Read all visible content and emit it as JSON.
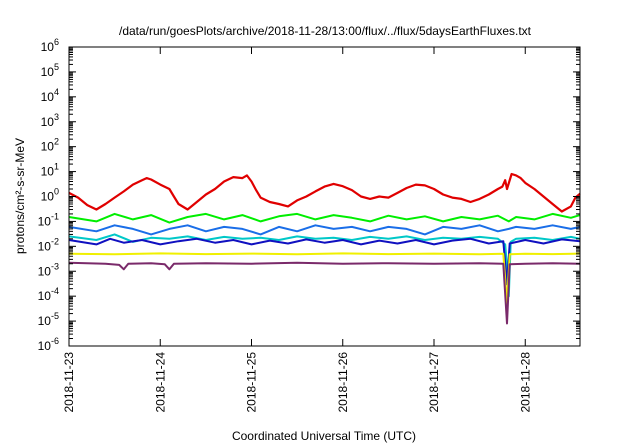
{
  "chart_data": {
    "type": "line",
    "title": "/data/run/goesPlots/archive/2018-11-28/13:00/flux/../flux/5daysEarthFluxes.txt",
    "xlabel": "Coordinated Universal Time (UTC)",
    "ylabel": "protons/cm²-s-sr-MeV",
    "yscale": "log",
    "ylim": [
      1e-06,
      1000000.0
    ],
    "xlim_days": [
      0,
      5.6
    ],
    "x_ticks": [
      {
        "day": 0,
        "label": "2018-11-23"
      },
      {
        "day": 1,
        "label": "2018-11-24"
      },
      {
        "day": 2,
        "label": "2018-11-25"
      },
      {
        "day": 3,
        "label": "2018-11-26"
      },
      {
        "day": 4,
        "label": "2018-11-27"
      },
      {
        "day": 5,
        "label": "2018-11-28"
      }
    ],
    "y_ticks": [
      {
        "value": 1e-06,
        "base": "10",
        "exp": "-6"
      },
      {
        "value": 1e-05,
        "base": "10",
        "exp": "-5"
      },
      {
        "value": 0.0001,
        "base": "10",
        "exp": "-4"
      },
      {
        "value": 0.001,
        "base": "10",
        "exp": "-3"
      },
      {
        "value": 0.01,
        "base": "10",
        "exp": "-2"
      },
      {
        "value": 0.1,
        "base": "10",
        "exp": "-1"
      },
      {
        "value": 1,
        "base": "10",
        "exp": "0"
      },
      {
        "value": 10.0,
        "base": "10",
        "exp": "1"
      },
      {
        "value": 100.0,
        "base": "10",
        "exp": "2"
      },
      {
        "value": 1000.0,
        "base": "10",
        "exp": "3"
      },
      {
        "value": 10000.0,
        "base": "10",
        "exp": "4"
      },
      {
        "value": 100000.0,
        "base": "10",
        "exp": "5"
      },
      {
        "value": 1000000.0,
        "base": "10",
        "exp": "6"
      }
    ],
    "grid": false,
    "legend": "none",
    "series": [
      {
        "color": "#e00000",
        "width": 2.2,
        "points": [
          [
            0.0,
            1.4
          ],
          [
            0.1,
            0.9
          ],
          [
            0.2,
            0.45
          ],
          [
            0.3,
            0.3
          ],
          [
            0.4,
            0.5
          ],
          [
            0.5,
            0.9
          ],
          [
            0.6,
            1.6
          ],
          [
            0.7,
            3.0
          ],
          [
            0.8,
            4.5
          ],
          [
            0.85,
            5.5
          ],
          [
            0.9,
            4.8
          ],
          [
            1.0,
            3.0
          ],
          [
            1.1,
            2.0
          ],
          [
            1.15,
            1.0
          ],
          [
            1.2,
            0.5
          ],
          [
            1.3,
            0.3
          ],
          [
            1.4,
            0.6
          ],
          [
            1.5,
            1.2
          ],
          [
            1.6,
            2.0
          ],
          [
            1.7,
            4.0
          ],
          [
            1.8,
            6.0
          ],
          [
            1.9,
            5.5
          ],
          [
            1.95,
            7.0
          ],
          [
            2.0,
            4.0
          ],
          [
            2.05,
            1.8
          ],
          [
            2.1,
            0.9
          ],
          [
            2.2,
            0.6
          ],
          [
            2.3,
            0.5
          ],
          [
            2.4,
            0.4
          ],
          [
            2.5,
            0.7
          ],
          [
            2.6,
            1.0
          ],
          [
            2.7,
            1.6
          ],
          [
            2.8,
            2.5
          ],
          [
            2.9,
            3.2
          ],
          [
            3.0,
            2.6
          ],
          [
            3.1,
            1.8
          ],
          [
            3.2,
            1.0
          ],
          [
            3.3,
            0.8
          ],
          [
            3.4,
            1.0
          ],
          [
            3.5,
            0.9
          ],
          [
            3.6,
            1.4
          ],
          [
            3.7,
            2.2
          ],
          [
            3.8,
            3.0
          ],
          [
            3.9,
            2.8
          ],
          [
            4.0,
            2.0
          ],
          [
            4.1,
            1.2
          ],
          [
            4.2,
            0.9
          ],
          [
            4.3,
            0.8
          ],
          [
            4.4,
            0.6
          ],
          [
            4.5,
            0.8
          ],
          [
            4.6,
            1.2
          ],
          [
            4.7,
            2.0
          ],
          [
            4.75,
            2.5
          ],
          [
            4.78,
            4.5
          ],
          [
            4.8,
            2.0
          ],
          [
            4.85,
            8.0
          ],
          [
            4.9,
            7.0
          ],
          [
            4.95,
            5.5
          ],
          [
            5.0,
            3.5
          ],
          [
            5.1,
            2.0
          ],
          [
            5.2,
            1.0
          ],
          [
            5.3,
            0.5
          ],
          [
            5.4,
            0.25
          ],
          [
            5.5,
            0.4
          ],
          [
            5.55,
            0.9
          ],
          [
            5.6,
            1.3
          ]
        ]
      },
      {
        "color": "#00ee00",
        "width": 2.0,
        "points": [
          [
            0.0,
            0.15
          ],
          [
            0.3,
            0.1
          ],
          [
            0.5,
            0.2
          ],
          [
            0.7,
            0.12
          ],
          [
            0.9,
            0.18
          ],
          [
            1.1,
            0.09
          ],
          [
            1.3,
            0.15
          ],
          [
            1.5,
            0.2
          ],
          [
            1.7,
            0.12
          ],
          [
            1.9,
            0.18
          ],
          [
            2.1,
            0.1
          ],
          [
            2.3,
            0.16
          ],
          [
            2.5,
            0.2
          ],
          [
            2.7,
            0.12
          ],
          [
            2.9,
            0.18
          ],
          [
            3.1,
            0.14
          ],
          [
            3.3,
            0.1
          ],
          [
            3.5,
            0.17
          ],
          [
            3.7,
            0.12
          ],
          [
            3.9,
            0.16
          ],
          [
            4.1,
            0.1
          ],
          [
            4.3,
            0.15
          ],
          [
            4.5,
            0.12
          ],
          [
            4.7,
            0.17
          ],
          [
            4.82,
            0.1
          ],
          [
            4.9,
            0.15
          ],
          [
            5.1,
            0.12
          ],
          [
            5.3,
            0.2
          ],
          [
            5.5,
            0.14
          ],
          [
            5.6,
            0.18
          ]
        ]
      },
      {
        "color": "#1a6ee8",
        "width": 2.0,
        "points": [
          [
            0.0,
            0.06
          ],
          [
            0.3,
            0.04
          ],
          [
            0.5,
            0.07
          ],
          [
            0.7,
            0.05
          ],
          [
            0.9,
            0.03
          ],
          [
            1.1,
            0.05
          ],
          [
            1.3,
            0.07
          ],
          [
            1.5,
            0.04
          ],
          [
            1.7,
            0.06
          ],
          [
            1.9,
            0.05
          ],
          [
            2.1,
            0.03
          ],
          [
            2.3,
            0.06
          ],
          [
            2.5,
            0.04
          ],
          [
            2.7,
            0.07
          ],
          [
            2.9,
            0.05
          ],
          [
            3.1,
            0.06
          ],
          [
            3.3,
            0.04
          ],
          [
            3.5,
            0.06
          ],
          [
            3.7,
            0.05
          ],
          [
            3.9,
            0.03
          ],
          [
            4.1,
            0.06
          ],
          [
            4.3,
            0.05
          ],
          [
            4.5,
            0.07
          ],
          [
            4.7,
            0.04
          ],
          [
            4.82,
            0.05
          ],
          [
            4.9,
            0.06
          ],
          [
            5.1,
            0.05
          ],
          [
            5.3,
            0.07
          ],
          [
            5.5,
            0.05
          ],
          [
            5.6,
            0.06
          ]
        ]
      },
      {
        "color": "#00c8c8",
        "width": 2.0,
        "points": [
          [
            0.0,
            0.025
          ],
          [
            0.3,
            0.018
          ],
          [
            0.5,
            0.03
          ],
          [
            0.7,
            0.015
          ],
          [
            0.9,
            0.022
          ],
          [
            1.1,
            0.02
          ],
          [
            1.3,
            0.025
          ],
          [
            1.5,
            0.018
          ],
          [
            1.7,
            0.024
          ],
          [
            1.9,
            0.02
          ],
          [
            2.1,
            0.022
          ],
          [
            2.3,
            0.018
          ],
          [
            2.5,
            0.025
          ],
          [
            2.7,
            0.02
          ],
          [
            2.9,
            0.022
          ],
          [
            3.1,
            0.018
          ],
          [
            3.3,
            0.024
          ],
          [
            3.5,
            0.02
          ],
          [
            3.7,
            0.025
          ],
          [
            3.9,
            0.018
          ],
          [
            4.1,
            0.022
          ],
          [
            4.3,
            0.02
          ],
          [
            4.5,
            0.024
          ],
          [
            4.7,
            0.02
          ],
          [
            4.78,
            0.012
          ],
          [
            4.8,
            0.0015
          ],
          [
            4.82,
            0.0001
          ],
          [
            4.84,
            0.015
          ],
          [
            4.9,
            0.02
          ],
          [
            5.1,
            0.022
          ],
          [
            5.3,
            0.018
          ],
          [
            5.5,
            0.024
          ],
          [
            5.6,
            0.02
          ]
        ]
      },
      {
        "color": "#1010c0",
        "width": 2.0,
        "points": [
          [
            0.0,
            0.018
          ],
          [
            0.3,
            0.012
          ],
          [
            0.45,
            0.02
          ],
          [
            0.6,
            0.014
          ],
          [
            0.8,
            0.018
          ],
          [
            1.0,
            0.012
          ],
          [
            1.2,
            0.016
          ],
          [
            1.4,
            0.02
          ],
          [
            1.6,
            0.014
          ],
          [
            1.8,
            0.018
          ],
          [
            2.0,
            0.012
          ],
          [
            2.2,
            0.017
          ],
          [
            2.4,
            0.013
          ],
          [
            2.6,
            0.019
          ],
          [
            2.8,
            0.014
          ],
          [
            3.0,
            0.018
          ],
          [
            3.2,
            0.012
          ],
          [
            3.4,
            0.017
          ],
          [
            3.6,
            0.013
          ],
          [
            3.8,
            0.018
          ],
          [
            4.0,
            0.012
          ],
          [
            4.2,
            0.017
          ],
          [
            4.4,
            0.02
          ],
          [
            4.6,
            0.013
          ],
          [
            4.76,
            0.016
          ],
          [
            4.8,
            0.0003
          ],
          [
            4.83,
            0.013
          ],
          [
            5.0,
            0.018
          ],
          [
            5.2,
            0.013
          ],
          [
            5.4,
            0.019
          ],
          [
            5.6,
            0.016
          ]
        ]
      },
      {
        "color": "#f0f000",
        "width": 2.0,
        "points": [
          [
            0.0,
            0.005
          ],
          [
            0.5,
            0.0048
          ],
          [
            1.0,
            0.0052
          ],
          [
            1.5,
            0.0049
          ],
          [
            2.0,
            0.0051
          ],
          [
            2.5,
            0.0048
          ],
          [
            3.0,
            0.0052
          ],
          [
            3.5,
            0.0049
          ],
          [
            4.0,
            0.0051
          ],
          [
            4.5,
            0.0048
          ],
          [
            4.76,
            0.005
          ],
          [
            4.8,
            5e-05
          ],
          [
            4.83,
            0.0048
          ],
          [
            5.0,
            0.005
          ],
          [
            5.3,
            0.0049
          ],
          [
            5.6,
            0.0051
          ]
        ]
      },
      {
        "color": "#7a2a6a",
        "width": 2.0,
        "points": [
          [
            0.0,
            0.0022
          ],
          [
            0.4,
            0.002
          ],
          [
            0.55,
            0.0018
          ],
          [
            0.6,
            0.0012
          ],
          [
            0.65,
            0.002
          ],
          [
            0.9,
            0.0021
          ],
          [
            1.05,
            0.0019
          ],
          [
            1.1,
            0.0012
          ],
          [
            1.15,
            0.002
          ],
          [
            1.5,
            0.0021
          ],
          [
            2.0,
            0.002
          ],
          [
            2.5,
            0.0022
          ],
          [
            3.0,
            0.002
          ],
          [
            3.5,
            0.0021
          ],
          [
            4.0,
            0.002
          ],
          [
            4.5,
            0.0021
          ],
          [
            4.76,
            0.002
          ],
          [
            4.8,
            8e-06
          ],
          [
            4.83,
            0.0019
          ],
          [
            5.0,
            0.002
          ],
          [
            5.3,
            0.0021
          ],
          [
            5.6,
            0.002
          ]
        ]
      }
    ]
  }
}
